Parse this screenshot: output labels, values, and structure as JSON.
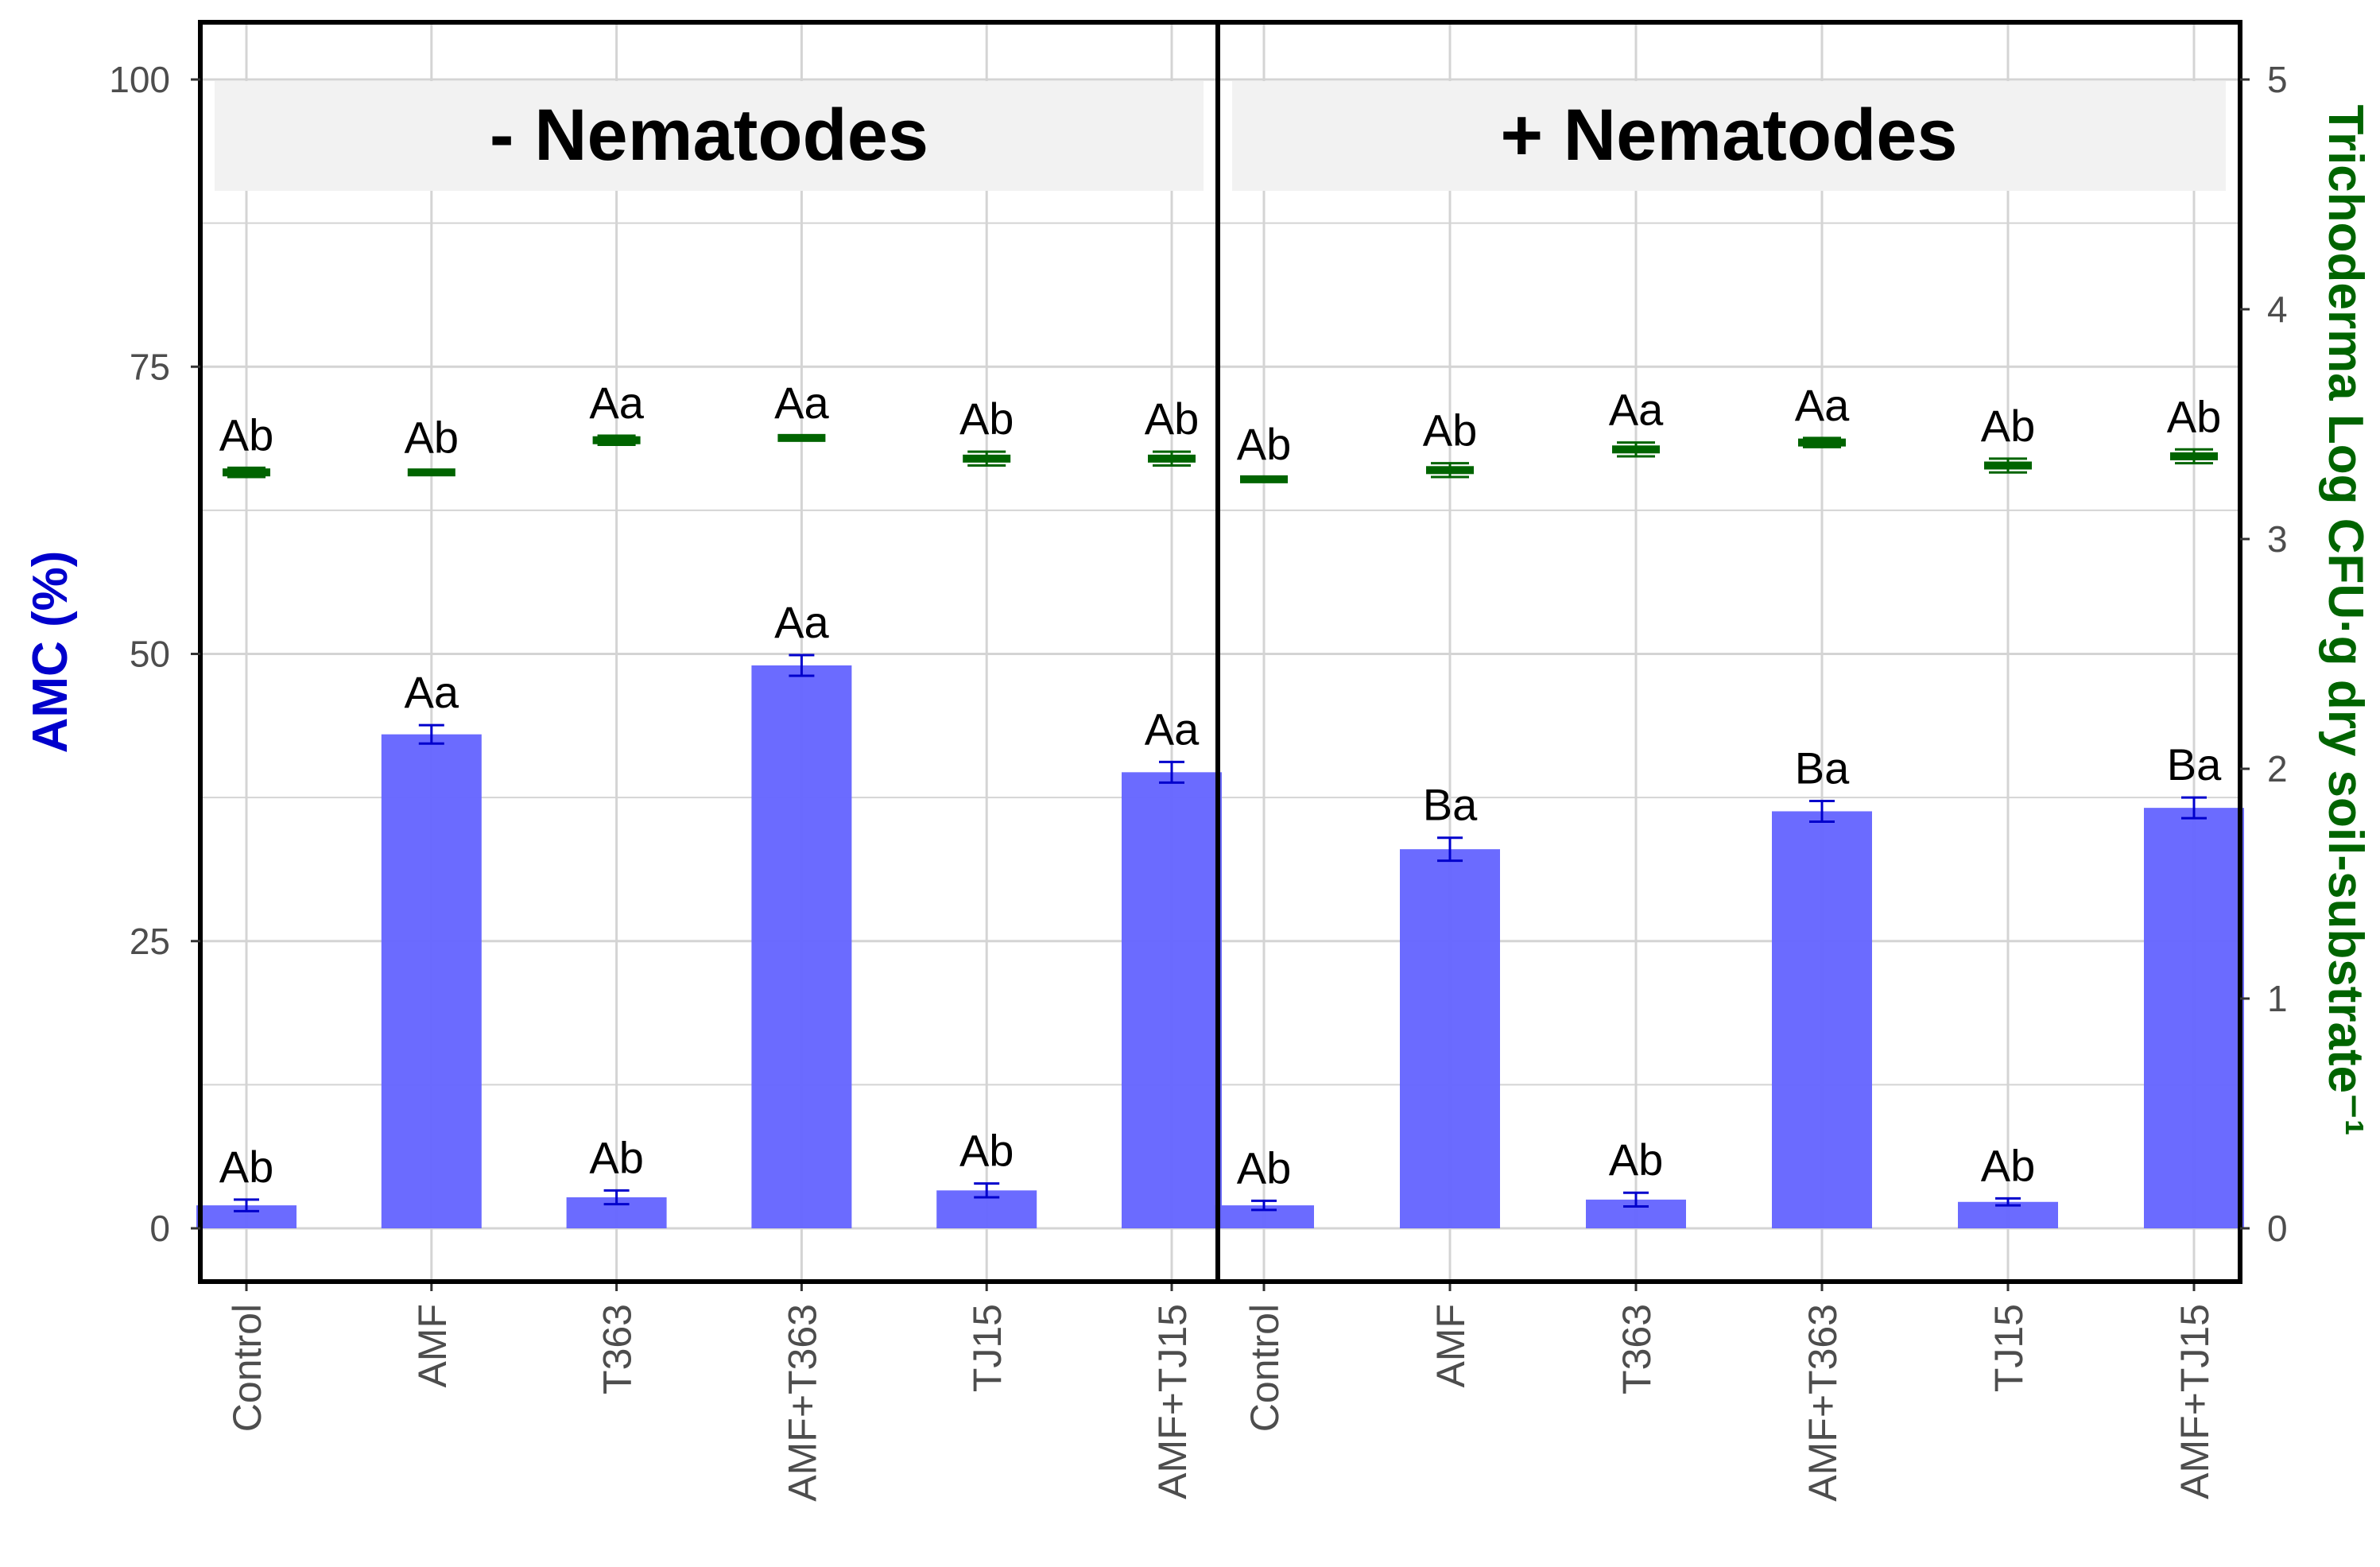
{
  "chart_data": {
    "type": "bar",
    "panels": [
      "- Nematodes",
      "+ Nematodes"
    ],
    "categories": [
      "Control",
      "AMF",
      "T363",
      "AMF+T363",
      "TJ15",
      "AMF+TJ15"
    ],
    "ylabel_left": "AMC (%)",
    "ylabel_right": "Trichoderma Log CFU·g dry soil-substrate⁻¹",
    "ylim_left": [
      0,
      100
    ],
    "ylim_right": [
      0,
      5
    ],
    "yticks_left": [
      "0",
      "25",
      "50",
      "75",
      "100"
    ],
    "yticks_right": [
      "0",
      "1",
      "2",
      "3",
      "4",
      "5"
    ],
    "grid": true,
    "series": [
      {
        "name": "AMC (%)",
        "kind": "bar",
        "axis": "left",
        "color": "#6666ff",
        "panels": [
          {
            "values": [
              2.0,
              43.0,
              2.7,
              49.0,
              3.3,
              39.7
            ],
            "errors": [
              0.5,
              0.8,
              0.6,
              0.9,
              0.6,
              0.9
            ],
            "letters": [
              "Ab",
              "Aa",
              "Ab",
              "Aa",
              "Ab",
              "Aa"
            ]
          },
          {
            "values": [
              2.0,
              33.0,
              2.5,
              36.3,
              2.3,
              36.6
            ],
            "errors": [
              0.4,
              1.0,
              0.6,
              0.9,
              0.3,
              0.9
            ],
            "letters": [
              "Ab",
              "Ba",
              "Ab",
              "Ba",
              "Ab",
              "Ba"
            ]
          }
        ]
      },
      {
        "name": "Trichoderma Log CFU",
        "kind": "point",
        "axis": "right",
        "color": "#006400",
        "panels": [
          {
            "values": [
              3.29,
              3.29,
              3.43,
              3.44,
              3.35,
              3.35
            ],
            "errors": [
              0.02,
              0.01,
              0.02,
              0.01,
              0.03,
              0.03
            ],
            "letters": [
              "Ab",
              "Ab",
              "Aa",
              "Aa",
              "Ab",
              "Ab"
            ]
          },
          {
            "values": [
              3.26,
              3.3,
              3.39,
              3.42,
              3.32,
              3.36
            ],
            "errors": [
              0.01,
              0.03,
              0.03,
              0.02,
              0.03,
              0.03
            ],
            "letters": [
              "Ab",
              "Ab",
              "Aa",
              "Aa",
              "Ab",
              "Ab"
            ]
          }
        ]
      }
    ]
  }
}
